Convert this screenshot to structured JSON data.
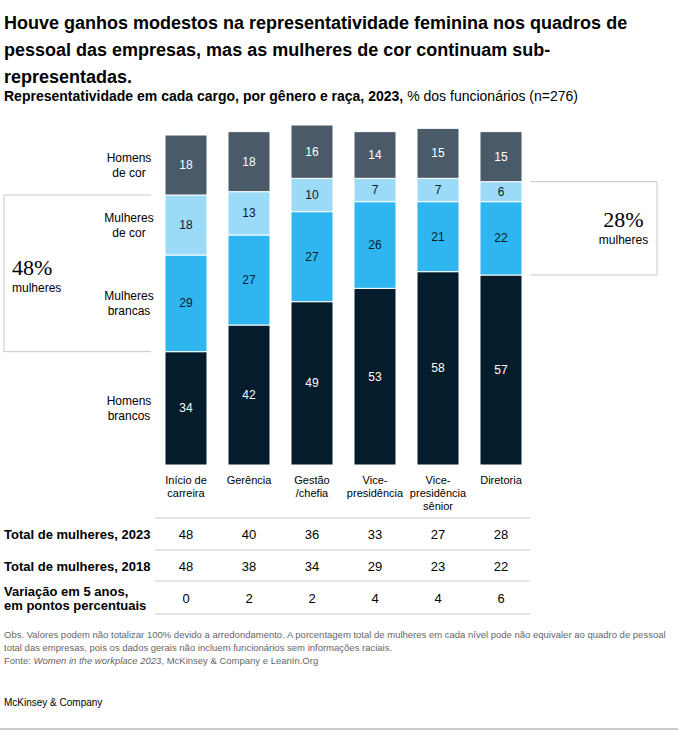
{
  "chart_data": {
    "type": "bar",
    "title": "Houve ganhos modestos na representatividade feminina nos quadros de pessoal das empresas, mas as mulheres de cor continuam sub-representadas.",
    "subtitle": "Representatividade em cada cargo, por gênero e raça, 2023,",
    "unit": "% dos funcionários (n=276)",
    "categories": [
      "Início de\ncarreira",
      "Gerência",
      "Gestão\n/chefia",
      "Vice-\npresidência",
      "Vice-\npresidência\nsênior",
      "Diretoria"
    ],
    "series": [
      {
        "name": "Homens\nbrancos",
        "color": "#051c2c",
        "values": [
          34,
          42,
          49,
          53,
          58,
          57
        ]
      },
      {
        "name": "Mulheres\nbrancas",
        "color": "#2fb5f0",
        "values": [
          29,
          27,
          27,
          26,
          21,
          22
        ]
      },
      {
        "name": "Mulheres\nde cor",
        "color": "#9cdbf8",
        "values": [
          18,
          13,
          10,
          7,
          7,
          6
        ]
      },
      {
        "name": "Homens\nde cor",
        "color": "#4b5a69",
        "values": [
          18,
          18,
          16,
          14,
          15,
          15
        ]
      }
    ],
    "ylim": [
      0,
      102
    ],
    "stacked": true,
    "data_labels": true,
    "tick_labels": "x",
    "grid": false,
    "annotations": [
      {
        "label": "48%",
        "text": "mulheres"
      },
      {
        "label": "28%",
        "text": "mulheres"
      }
    ],
    "table": {
      "rows": [
        {
          "label": "Total de mulheres, 2023",
          "values": [
            48,
            40,
            36,
            33,
            27,
            28
          ]
        },
        {
          "label": "Total de mulheres, 2018",
          "values": [
            48,
            38,
            34,
            29,
            23,
            22
          ]
        },
        {
          "label": "Variação em 5 anos,\nem pontos percentuais",
          "values": [
            0,
            2,
            2,
            4,
            4,
            6
          ]
        }
      ]
    },
    "note": "Obs. Valores podem não totalizar 100% devido a arredondamento. A porcentagem total de mulheres em cada nível pode não equivaler ao quadro de pessoal total das empresas, pois os dados gerais não incluem funcionários sem informações raciais.",
    "source_prefix": "Fonte: ",
    "source_title": "Women in the workplace 2023",
    "source_rest": ", McKinsey & Company e LeanIn.Org",
    "logo": "McKinsey & Company"
  }
}
